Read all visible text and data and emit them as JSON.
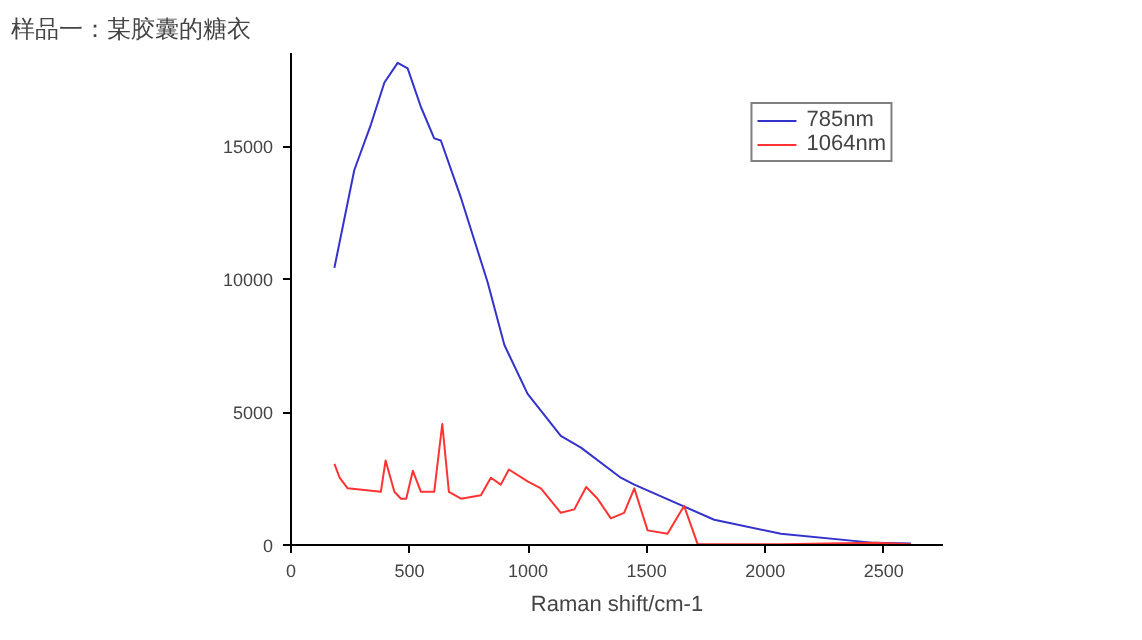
{
  "chart_data": {
    "type": "line",
    "title": "样品一：某胶囊的糖衣",
    "xlabel": "Raman shift/cm-1",
    "xlim": [
      0,
      2750
    ],
    "ylim": [
      0,
      18500
    ],
    "xticks": [
      0,
      500,
      1000,
      1500,
      2000,
      2500
    ],
    "yticks": [
      0,
      5000,
      10000,
      15000
    ],
    "grid": false,
    "legend": "top right",
    "marker": "none",
    "line_style": "solid",
    "series": [
      {
        "name": "785nm",
        "color": "#3333cc",
        "x": [
          183,
          267,
          337,
          394,
          450,
          492,
          548,
          604,
          632,
          717,
          829,
          900,
          998,
          1138,
          1223,
          1391,
          1448,
          1785,
          2066,
          2460,
          2614
        ],
        "values": [
          10420,
          14100,
          15810,
          17390,
          18130,
          17920,
          16470,
          15290,
          15210,
          13050,
          9890,
          7520,
          5680,
          4100,
          3660,
          2530,
          2270,
          950,
          420,
          80,
          60
        ]
      },
      {
        "name": "1064nm",
        "color": "#ff3333",
        "x": [
          183,
          205,
          239,
          379,
          399,
          436,
          464,
          486,
          514,
          548,
          604,
          638,
          666,
          717,
          801,
          843,
          885,
          919,
          998,
          1054,
          1138,
          1195,
          1245,
          1293,
          1349,
          1405,
          1448,
          1504,
          1588,
          1658,
          1715,
          2066,
          2460,
          2614
        ],
        "values": [
          3050,
          2530,
          2130,
          2000,
          3180,
          2000,
          1740,
          1740,
          2790,
          2000,
          2000,
          4550,
          2000,
          1740,
          1870,
          2530,
          2270,
          2840,
          2390,
          2130,
          1210,
          1340,
          2180,
          1740,
          1000,
          1210,
          2130,
          550,
          420,
          1470,
          30,
          30,
          80,
          30
        ]
      }
    ]
  }
}
